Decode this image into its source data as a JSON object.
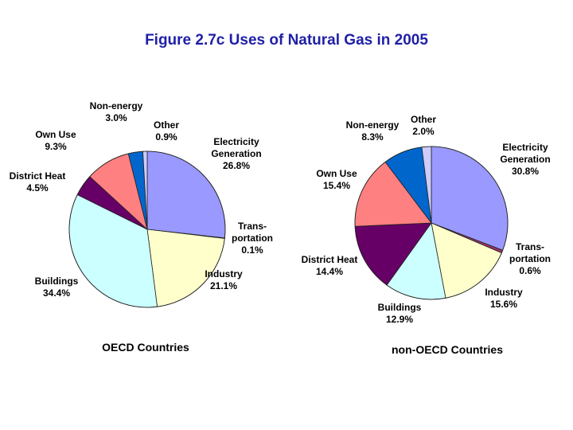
{
  "title": "Figure 2.7c Uses of Natural Gas in 2005",
  "chart_data": [
    {
      "type": "pie",
      "subtitle": "OECD Countries",
      "slices": [
        {
          "label": [
            "Electricity",
            "Generation"
          ],
          "value": 26.8,
          "value_label": "26.8%",
          "color": "#9999ff"
        },
        {
          "label": [
            "Trans-",
            "portation"
          ],
          "value": 0.1,
          "value_label": "0.1%",
          "color": "#9999ff"
        },
        {
          "label": [
            "Industry"
          ],
          "value": 21.1,
          "value_label": "21.1%",
          "color": "#ffffcc"
        },
        {
          "label": [
            "Buildings"
          ],
          "value": 34.4,
          "value_label": "34.4%",
          "color": "#ccffff"
        },
        {
          "label": [
            "District Heat"
          ],
          "value": 4.5,
          "value_label": "4.5%",
          "color": "#660066"
        },
        {
          "label": [
            "Own Use"
          ],
          "value": 9.3,
          "value_label": "9.3%",
          "color": "#ff8080"
        },
        {
          "label": [
            "Non-energy"
          ],
          "value": 3.0,
          "value_label": "3.0%",
          "color": "#0066cc"
        },
        {
          "label": [
            "Other"
          ],
          "value": 0.9,
          "value_label": "0.9%",
          "color": "#ccccff"
        }
      ]
    },
    {
      "type": "pie",
      "subtitle": "non-OECD Countries",
      "slices": [
        {
          "label": [
            "Electricity",
            "Generation"
          ],
          "value": 30.8,
          "value_label": "30.8%",
          "color": "#9999ff"
        },
        {
          "label": [
            "Trans-",
            "portation"
          ],
          "value": 0.6,
          "value_label": "0.6%",
          "color": "#993366"
        },
        {
          "label": [
            "Industry"
          ],
          "value": 15.6,
          "value_label": "15.6%",
          "color": "#ffffcc"
        },
        {
          "label": [
            "Buildings"
          ],
          "value": 12.9,
          "value_label": "12.9%",
          "color": "#ccffff"
        },
        {
          "label": [
            "District Heat"
          ],
          "value": 14.4,
          "value_label": "14.4%",
          "color": "#660066"
        },
        {
          "label": [
            "Own Use"
          ],
          "value": 15.4,
          "value_label": "15.4%",
          "color": "#ff8080"
        },
        {
          "label": [
            "Non-energy"
          ],
          "value": 8.3,
          "value_label": "8.3%",
          "color": "#0066cc"
        },
        {
          "label": [
            "Other"
          ],
          "value": 2.0,
          "value_label": "2.0%",
          "color": "#ccccff"
        }
      ]
    }
  ]
}
